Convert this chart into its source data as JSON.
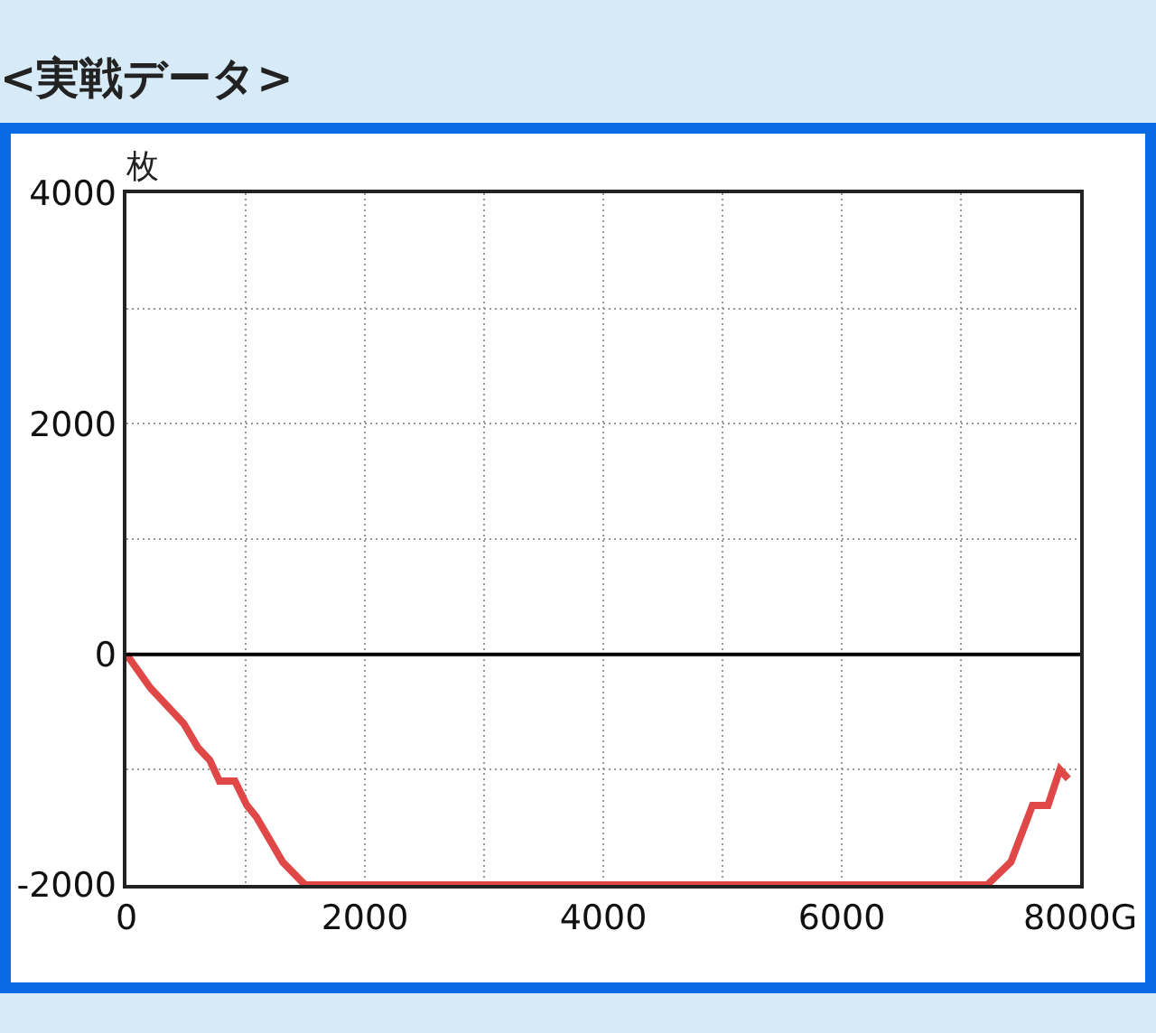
{
  "chart_data": {
    "type": "line",
    "title": "<実戦データ>",
    "ylabel": "枚",
    "x": [
      0,
      200,
      480,
      600,
      700,
      780,
      910,
      1010,
      1090,
      1310,
      1460,
      1500,
      7220,
      7420,
      7600,
      7730,
      7830,
      7900
    ],
    "series": [
      {
        "color": "#e04848",
        "values": [
          0,
          -290,
          -600,
          -810,
          -920,
          -1100,
          -1100,
          -1310,
          -1410,
          -1800,
          -1960,
          -2000,
          -2000,
          -1800,
          -1310,
          -1310,
          -1000,
          -1080
        ]
      }
    ],
    "xlim": [
      0,
      8000
    ],
    "ylim": [
      -2000,
      4000
    ],
    "xticks": [
      0,
      {
        "value": 1000,
        "label": null
      },
      2000,
      {
        "value": 3000,
        "label": null
      },
      4000,
      {
        "value": 5000,
        "label": null
      },
      6000,
      {
        "value": 7000,
        "label": null
      },
      {
        "value": 8000,
        "label": "8000G"
      }
    ],
    "yticks": [
      -2000,
      {
        "value": -1000,
        "label": null
      },
      0,
      {
        "value": 1000,
        "label": null
      },
      2000,
      {
        "value": 3000,
        "label": null
      },
      4000
    ],
    "ref_lines": [
      {
        "axis": "y",
        "value": 0,
        "color": "#000000",
        "line_style": "solid"
      }
    ],
    "grid": true,
    "marker": "none",
    "line_style": "solid"
  }
}
